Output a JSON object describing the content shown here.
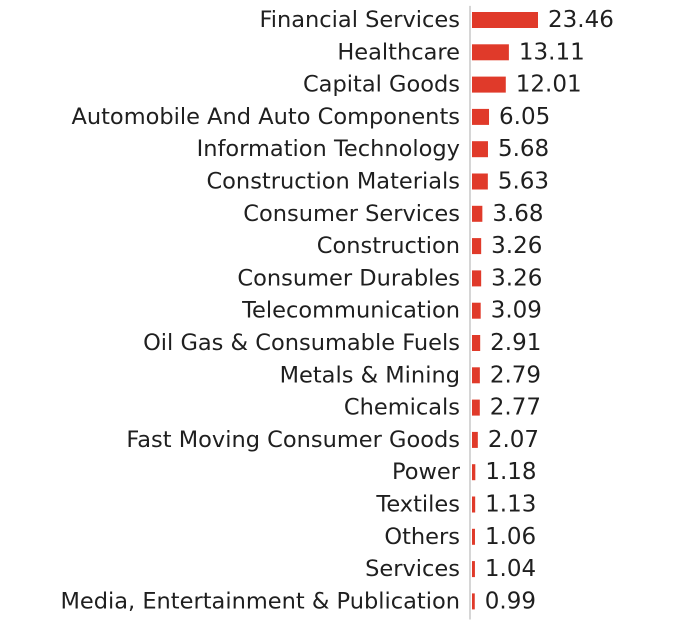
{
  "chart_data": {
    "type": "bar",
    "orientation": "horizontal",
    "title": "",
    "xlabel": "",
    "ylabel": "",
    "categories": [
      "Financial Services",
      "Healthcare",
      "Capital Goods",
      "Automobile And Auto Components",
      "Information Technology",
      "Construction Materials",
      "Consumer Services",
      "Construction",
      "Consumer Durables",
      "Telecommunication",
      "Oil Gas & Consumable Fuels",
      "Metals & Mining",
      "Chemicals",
      "Fast Moving Consumer Goods",
      "Power",
      "Textiles",
      "Others",
      "Services",
      "Media, Entertainment & Publication"
    ],
    "values": [
      23.46,
      13.11,
      12.01,
      6.05,
      5.68,
      5.63,
      3.68,
      3.26,
      3.26,
      3.09,
      2.91,
      2.79,
      2.77,
      2.07,
      1.18,
      1.13,
      1.06,
      1.04,
      0.99
    ],
    "value_labels": [
      "23.46",
      "13.11",
      "12.01",
      "6.05",
      "5.68",
      "5.63",
      "3.68",
      "3.26",
      "3.26",
      "3.09",
      "2.91",
      "2.79",
      "2.77",
      "2.07",
      "1.18",
      "1.13",
      "1.06",
      "1.04",
      "0.99"
    ],
    "xlim": [
      0,
      23.46
    ],
    "grid": false,
    "legend": "none",
    "bar_color": "#e03a2a",
    "axis_color": "#c8c8c8"
  }
}
